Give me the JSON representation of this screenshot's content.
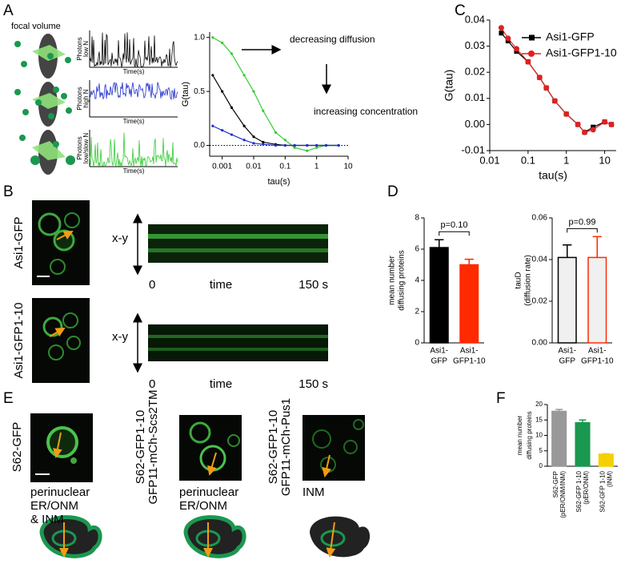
{
  "panel_labels": [
    "A",
    "B",
    "C",
    "D",
    "E",
    "F"
  ],
  "panel_a": {
    "focal_volume": "focal volume",
    "traces": [
      {
        "y_label": [
          "Photons",
          "low N"
        ],
        "x_label": "Time(s)",
        "color": "#000000"
      },
      {
        "y_label": [
          "Photons",
          "high N"
        ],
        "x_label": "Time(s)",
        "color": "#1f2fd0"
      },
      {
        "y_label": [
          "Photons",
          "low/slow N"
        ],
        "x_label": "Time(s)",
        "color": "#33cc33"
      }
    ]
  },
  "panel_b": {
    "rows": [
      {
        "label": "Asi1-GFP",
        "color": "#000000"
      },
      {
        "label": "Asi1-GFP1-10",
        "color": "#e02020"
      }
    ],
    "axis_label": "x-y",
    "time_start": "0",
    "time_label": "time",
    "time_end": "150 s"
  },
  "panel_e": {
    "images": [
      {
        "label": [
          "S62-GFP"
        ],
        "caption": [
          "perinuclear",
          "ER/ONM",
          "& INM"
        ]
      },
      {
        "label": [
          "S62-GFP1-10",
          "GFP11-mCh-Scs2TM"
        ],
        "caption": [
          "perinuclear",
          "ER/ONM"
        ]
      },
      {
        "label": [
          "S62-GFP1-10",
          "GFP11-mCh-Pus1"
        ],
        "caption": [
          "INM"
        ]
      }
    ]
  },
  "chart_data": [
    {
      "type": "line",
      "x_label": "tau(s)",
      "y_label": "G(tau)",
      "annotations": [
        "decreasing diffusion",
        "increasing concentration"
      ],
      "log_x": true,
      "reference_line": 0,
      "x": [
        0.0005,
        0.001,
        0.002,
        0.005,
        0.01,
        0.02,
        0.05,
        0.1,
        0.2,
        0.5,
        1,
        2,
        5
      ],
      "series": [
        {
          "color": "#33cc33",
          "values": [
            1.0,
            0.95,
            0.85,
            0.65,
            0.5,
            0.32,
            0.12,
            0.05,
            -0.02,
            -0.05,
            -0.02,
            0,
            0
          ]
        },
        {
          "color": "#000000",
          "values": [
            0.65,
            0.5,
            0.35,
            0.18,
            0.08,
            0.03,
            0.01,
            0,
            0,
            0,
            0,
            0,
            0
          ]
        },
        {
          "color": "#1f2fd0",
          "values": [
            0.18,
            0.14,
            0.1,
            0.05,
            0.02,
            0.01,
            0,
            0,
            0,
            0,
            0,
            0,
            0
          ]
        }
      ],
      "xlim": [
        0.0004,
        10
      ],
      "xticks": [
        0.001,
        0.01,
        0.1,
        1,
        10
      ],
      "ylim": [
        -0.1,
        1.05
      ],
      "yticks": [
        {
          "value": 0,
          "label": "0.0"
        },
        0.5,
        {
          "value": 1,
          "label": "1.0"
        }
      ]
    },
    {
      "type": "line",
      "x_label": "tau(s)",
      "y_label": "G(tau)",
      "log_x": true,
      "legend": "top-right",
      "x": [
        0.02,
        0.03,
        0.05,
        0.1,
        0.2,
        0.3,
        0.5,
        1,
        2,
        3,
        5,
        10,
        15
      ],
      "series": [
        {
          "name": "Asi1-GFP",
          "color": "#000000",
          "marker": "square",
          "values": [
            0.035,
            0.032,
            0.028,
            0.024,
            0.018,
            0.014,
            0.009,
            0.004,
            0.0,
            -0.003,
            -0.001,
            0.001,
            0.0
          ]
        },
        {
          "name": "Asi1-GFP1-10",
          "color": "#e02020",
          "marker": "circle",
          "values": [
            0.037,
            0.033,
            0.029,
            0.024,
            0.018,
            0.014,
            0.009,
            0.004,
            0.0,
            -0.003,
            -0.002,
            0.001,
            0.0
          ]
        }
      ],
      "xlim": [
        0.01,
        20
      ],
      "xticks": [
        0.01,
        0.1,
        1,
        10
      ],
      "ylim": [
        -0.01,
        0.04
      ],
      "yticks": [
        -0.01,
        {
          "value": 0,
          "label": "0.00"
        },
        0.01,
        0.02,
        0.03,
        0.04
      ]
    },
    {
      "type": "bar",
      "y_label": [
        "mean number",
        "diffusing proteins"
      ],
      "categories": [
        [
          "Asi1-",
          "GFP"
        ],
        [
          "Asi1-",
          "GFP1-10"
        ]
      ],
      "values": [
        6.1,
        5.0
      ],
      "errors": [
        0.5,
        0.35
      ],
      "colors": [
        "#000000",
        "#ff2a00"
      ],
      "edge_colors": [
        "#000000",
        "#ff2a00"
      ],
      "annotation": "p=0.10",
      "ylim": [
        0,
        8
      ],
      "yticks": [
        0,
        2,
        4,
        6,
        8
      ]
    },
    {
      "type": "bar",
      "y_label": [
        "tauD",
        "(diffusion rate)"
      ],
      "categories": [
        [
          "Asi1-",
          "GFP"
        ],
        [
          "Asi1-",
          "GFP1-10"
        ]
      ],
      "values": [
        0.041,
        0.041
      ],
      "errors": [
        0.006,
        0.01
      ],
      "colors": [
        "#f0f0f0",
        "#f0f0f0"
      ],
      "edge_colors": [
        "#000000",
        "#ff2a00"
      ],
      "annotation": "p=0.99",
      "ylim": [
        0,
        0.06
      ],
      "yticks": [
        {
          "value": 0,
          "label": "0.00"
        },
        0.02,
        0.04,
        0.06
      ]
    },
    {
      "type": "bar",
      "y_label": [
        "mean number",
        "diffusing proteins"
      ],
      "rotate_categories": true,
      "categories": [
        [
          "S62-GFP",
          "(pER/ONM/INM)"
        ],
        [
          "S62-GFP 1-10",
          "(pER/ONM)"
        ],
        [
          "S62-GFP 1-10",
          "(INM)"
        ]
      ],
      "values": [
        17.8,
        14.1,
        3.9
      ],
      "errors": [
        0.6,
        0.9,
        0.15
      ],
      "colors": [
        "#999999",
        "#1a9850",
        "#f5d000"
      ],
      "edge_colors": [
        "#999999",
        "#1a9850",
        "#f5d000"
      ],
      "ylim": [
        0,
        20
      ],
      "yticks": [
        0,
        5,
        10,
        15,
        20
      ]
    }
  ]
}
